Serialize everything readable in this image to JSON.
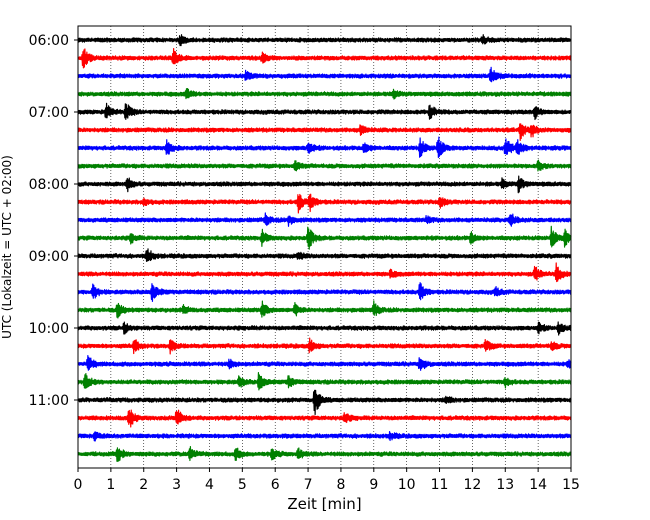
{
  "chart_data": {
    "type": "line",
    "title": "",
    "xlabel": "Zeit  [min]",
    "ylabel": "UTC (Lokalzeit = UTC + 02:00)",
    "xlim": [
      0,
      15
    ],
    "x_ticks": [
      "0",
      "1",
      "2",
      "3",
      "4",
      "5",
      "6",
      "7",
      "8",
      "9",
      "10",
      "11",
      "12",
      "13",
      "14",
      "15"
    ],
    "y_tick_labels": [
      "06:00",
      "07:00",
      "08:00",
      "09:00",
      "10:00",
      "11:00"
    ],
    "traces_per_hour": 4,
    "trace_minutes": 15,
    "grid": "vertical dotted at each minute",
    "color_cycle": [
      "#000000",
      "#ff0000",
      "#0000ff",
      "#008000"
    ],
    "series": [
      {
        "start": "06:00",
        "events": [
          [
            3.1,
            0.6
          ],
          [
            12.3,
            0.5
          ]
        ]
      },
      {
        "start": "06:15",
        "events": [
          [
            0.15,
            1.4
          ],
          [
            2.9,
            0.9
          ],
          [
            5.6,
            0.5
          ]
        ]
      },
      {
        "start": "06:30",
        "events": [
          [
            12.55,
            1.1
          ],
          [
            5.1,
            0.5
          ]
        ]
      },
      {
        "start": "06:45",
        "events": [
          [
            3.3,
            0.6
          ],
          [
            9.6,
            0.5
          ]
        ]
      },
      {
        "start": "07:00",
        "events": [
          [
            0.85,
            0.9
          ],
          [
            1.45,
            1.1
          ],
          [
            10.7,
            0.9
          ],
          [
            13.9,
            0.7
          ]
        ]
      },
      {
        "start": "07:15",
        "events": [
          [
            13.45,
            1.0
          ],
          [
            13.8,
            0.8
          ],
          [
            8.6,
            0.6
          ]
        ]
      },
      {
        "start": "07:30",
        "events": [
          [
            2.7,
            0.9
          ],
          [
            7.0,
            0.7
          ],
          [
            8.7,
            0.7
          ],
          [
            10.4,
            1.1
          ],
          [
            10.95,
            1.3
          ],
          [
            13.0,
            1.3
          ],
          [
            13.35,
            1.1
          ]
        ]
      },
      {
        "start": "07:45",
        "events": [
          [
            6.6,
            0.5
          ],
          [
            14.0,
            0.5
          ]
        ]
      },
      {
        "start": "08:00",
        "events": [
          [
            1.5,
            0.8
          ],
          [
            13.4,
            0.9
          ],
          [
            12.9,
            0.5
          ]
        ]
      },
      {
        "start": "08:15",
        "events": [
          [
            6.7,
            1.1
          ],
          [
            7.05,
            1.0
          ],
          [
            11.0,
            0.7
          ],
          [
            2.0,
            0.4
          ]
        ]
      },
      {
        "start": "08:30",
        "events": [
          [
            5.7,
            0.6
          ],
          [
            6.4,
            0.6
          ],
          [
            13.15,
            0.9
          ],
          [
            10.6,
            0.4
          ]
        ]
      },
      {
        "start": "08:45",
        "events": [
          [
            7.0,
            1.4
          ],
          [
            5.6,
            0.8
          ],
          [
            14.4,
            1.1
          ],
          [
            14.8,
            0.9
          ],
          [
            11.95,
            0.7
          ],
          [
            1.6,
            0.5
          ]
        ]
      },
      {
        "start": "09:00",
        "events": [
          [
            2.1,
            0.9
          ],
          [
            6.7,
            0.4
          ]
        ]
      },
      {
        "start": "09:15",
        "events": [
          [
            14.55,
            1.1
          ],
          [
            13.9,
            0.9
          ],
          [
            9.5,
            0.4
          ]
        ]
      },
      {
        "start": "09:30",
        "events": [
          [
            0.45,
            0.9
          ],
          [
            2.25,
            1.1
          ],
          [
            10.4,
            1.1
          ],
          [
            12.7,
            0.5
          ]
        ]
      },
      {
        "start": "09:45",
        "events": [
          [
            1.2,
            0.9
          ],
          [
            5.6,
            0.9
          ],
          [
            6.6,
            0.7
          ],
          [
            9.0,
            0.8
          ],
          [
            3.2,
            0.5
          ]
        ]
      },
      {
        "start": "10:00",
        "events": [
          [
            1.4,
            0.6
          ],
          [
            14.0,
            0.6
          ],
          [
            14.6,
            0.7
          ]
        ]
      },
      {
        "start": "10:15",
        "events": [
          [
            1.7,
            0.8
          ],
          [
            2.8,
            0.7
          ],
          [
            7.05,
            0.8
          ],
          [
            12.4,
            0.7
          ],
          [
            14.4,
            0.5
          ]
        ]
      },
      {
        "start": "10:30",
        "events": [
          [
            0.3,
            0.9
          ],
          [
            10.4,
            0.9
          ],
          [
            4.6,
            0.5
          ],
          [
            14.9,
            0.5
          ]
        ]
      },
      {
        "start": "10:45",
        "events": [
          [
            0.2,
            1.1
          ],
          [
            4.9,
            0.7
          ],
          [
            5.5,
            1.1
          ],
          [
            6.4,
            0.7
          ],
          [
            13.0,
            0.5
          ]
        ]
      },
      {
        "start": "11:00",
        "events": [
          [
            7.2,
            1.8
          ],
          [
            11.2,
            0.4
          ]
        ]
      },
      {
        "start": "11:15",
        "events": [
          [
            1.55,
            1.3
          ],
          [
            3.0,
            1.2
          ],
          [
            8.1,
            0.6
          ]
        ]
      },
      {
        "start": "11:30",
        "events": [
          [
            0.5,
            0.4
          ],
          [
            9.5,
            0.4
          ]
        ]
      },
      {
        "start": "11:45",
        "events": [
          [
            1.2,
            0.9
          ],
          [
            3.4,
            0.9
          ],
          [
            4.8,
            0.7
          ],
          [
            5.9,
            0.6
          ],
          [
            6.7,
            0.6
          ]
        ]
      }
    ]
  }
}
